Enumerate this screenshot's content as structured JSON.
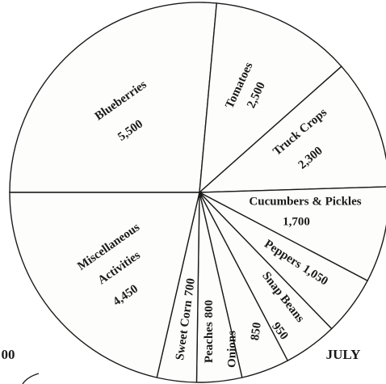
{
  "chart_data": {
    "type": "pie",
    "categories": [
      "Blueberries",
      "Tomatoes",
      "Truck Crops",
      "Cucumbers & Pickles",
      "Peppers",
      "Snap Beans",
      "Onions",
      "Peaches",
      "Sweet Corn",
      "Miscellaneous Activities"
    ],
    "values": [
      5500,
      2500,
      2300,
      1700,
      1050,
      950,
      850,
      800,
      700,
      4450
    ],
    "value_labels": [
      "5,500",
      "2,500",
      "2,300",
      "1,700",
      "1,050",
      "950",
      "850",
      "800",
      "700",
      "4,450"
    ],
    "subtitle": "JULY",
    "annotations": [
      "00"
    ]
  }
}
